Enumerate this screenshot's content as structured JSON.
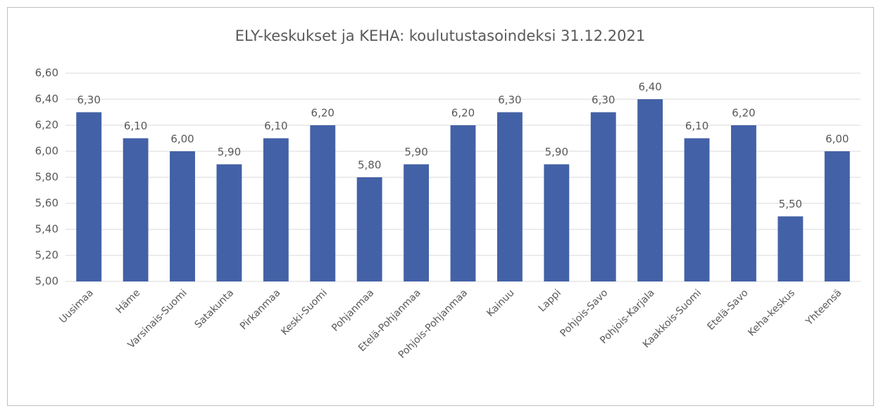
{
  "chart_data": {
    "type": "bar",
    "title": "ELY-keskukset ja KEHA: koulutustasoindeksi 31.12.2021",
    "categories": [
      "Uusimaa",
      "Häme",
      "Varsinais-Suomi",
      "Satakunta",
      "Pirkanmaa",
      "Keski-Suomi",
      "Pohjanmaa",
      "Etelä-Pohjanmaa",
      "Pohjois-Pohjanmaa",
      "Kainuu",
      "Lappi",
      "Pohjois-Savo",
      "Pohjois-Karjala",
      "Kaakkois-Suomi",
      "Etelä-Savo",
      "Keha-keskus",
      "Yhteensä"
    ],
    "values": [
      6.3,
      6.1,
      6.0,
      5.9,
      6.1,
      6.2,
      5.8,
      5.9,
      6.2,
      6.3,
      5.9,
      6.3,
      6.4,
      6.1,
      6.2,
      5.5,
      6.0
    ],
    "value_labels": [
      "6,30",
      "6,10",
      "6,00",
      "5,90",
      "6,10",
      "6,20",
      "5,80",
      "5,90",
      "6,20",
      "6,30",
      "5,90",
      "6,30",
      "6,40",
      "6,10",
      "6,20",
      "5,50",
      "6,00"
    ],
    "color": "#4361a6",
    "ylim": [
      5.0,
      6.6
    ],
    "yticks": [
      {
        "value": 5.0,
        "label": "5,00"
      },
      {
        "value": 5.2,
        "label": "5,20"
      },
      {
        "value": 5.4,
        "label": "5,40"
      },
      {
        "value": 5.6,
        "label": "5,60"
      },
      {
        "value": 5.8,
        "label": "5,80"
      },
      {
        "value": 6.0,
        "label": "6,00"
      },
      {
        "value": 6.2,
        "label": "6,20"
      },
      {
        "value": 6.4,
        "label": "6,40"
      },
      {
        "value": 6.6,
        "label": "6,60"
      }
    ],
    "grid": true
  }
}
